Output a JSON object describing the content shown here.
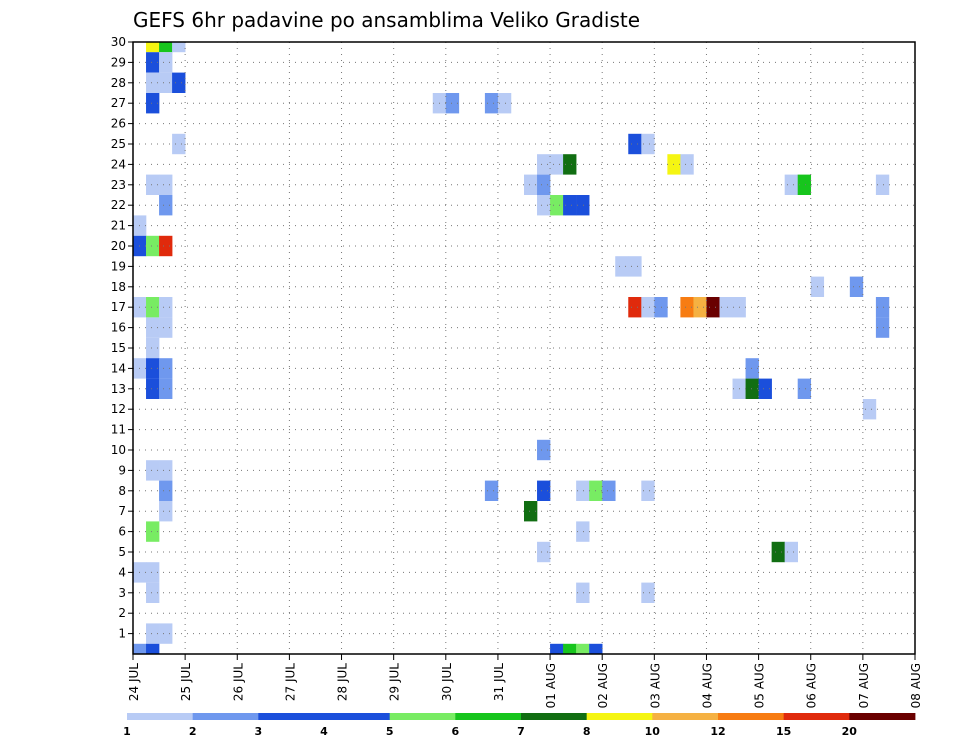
{
  "chart_data": {
    "type": "heatmap",
    "title": "GEFS 6hr padavine po ansamblima Veliko Gradiste",
    "xlabel": "",
    "ylabel": "",
    "x_tick_labels": [
      "24 JUL",
      "25 JUL",
      "26 JUL",
      "27 JUL",
      "28 JUL",
      "29 JUL",
      "30 JUL",
      "31 JUL",
      "01 AUG",
      "02 AUG",
      "03 AUG",
      "04 AUG",
      "05 AUG",
      "06 AUG",
      "07 AUG",
      "08 AUG"
    ],
    "y_tick_labels": [
      "1",
      "2",
      "3",
      "4",
      "5",
      "6",
      "7",
      "8",
      "9",
      "10",
      "11",
      "12",
      "13",
      "14",
      "15",
      "16",
      "17",
      "18",
      "19",
      "20",
      "21",
      "22",
      "23",
      "24",
      "25",
      "26",
      "27",
      "28",
      "29",
      "30"
    ],
    "x_range_steps": [
      0,
      60
    ],
    "y_range": [
      0,
      30
    ],
    "grid": true,
    "levels": [
      "1",
      "2",
      "3",
      "4",
      "5",
      "6",
      "7",
      "8",
      "10",
      "12",
      "15",
      "20"
    ],
    "colors": [
      "#b8cbf5",
      "#6f98ee",
      "#1b4fdb",
      "#1b4fdb",
      "#78ec63",
      "#17c51d",
      "#116e12",
      "#f5f512",
      "#f5b142",
      "#f77c12",
      "#e02a0c",
      "#6a0000"
    ],
    "cell_value_note": "each cell: [step index from 24 JUL 00z in 6-hour steps, ensemble member, color class index]",
    "cells": [
      [
        1,
        30,
        7
      ],
      [
        2,
        30,
        5
      ],
      [
        3,
        30,
        0
      ],
      [
        1,
        29,
        2
      ],
      [
        2,
        29,
        0
      ],
      [
        1,
        28,
        0
      ],
      [
        2,
        28,
        0
      ],
      [
        3,
        28,
        2
      ],
      [
        1,
        27,
        2
      ],
      [
        23,
        27,
        0
      ],
      [
        24,
        27,
        1
      ],
      [
        27,
        27,
        1
      ],
      [
        28,
        27,
        0
      ],
      [
        3,
        25,
        0
      ],
      [
        38,
        25,
        2
      ],
      [
        39,
        25,
        0
      ],
      [
        31,
        24,
        0
      ],
      [
        32,
        24,
        0
      ],
      [
        33,
        24,
        6
      ],
      [
        41,
        24,
        7
      ],
      [
        42,
        24,
        0
      ],
      [
        1,
        23,
        0
      ],
      [
        2,
        23,
        0
      ],
      [
        30,
        23,
        0
      ],
      [
        31,
        23,
        1
      ],
      [
        50,
        23,
        0
      ],
      [
        51,
        23,
        5
      ],
      [
        57,
        23,
        0
      ],
      [
        2,
        22,
        1
      ],
      [
        31,
        22,
        0
      ],
      [
        32,
        22,
        4
      ],
      [
        33,
        22,
        2
      ],
      [
        34,
        22,
        2
      ],
      [
        0,
        21,
        0
      ],
      [
        0,
        20,
        2
      ],
      [
        1,
        20,
        4
      ],
      [
        2,
        20,
        10
      ],
      [
        37,
        19,
        0
      ],
      [
        38,
        19,
        0
      ],
      [
        52,
        18,
        0
      ],
      [
        55,
        18,
        1
      ],
      [
        0,
        17,
        0
      ],
      [
        1,
        17,
        4
      ],
      [
        2,
        17,
        0
      ],
      [
        38,
        17,
        10
      ],
      [
        39,
        17,
        0
      ],
      [
        40,
        17,
        1
      ],
      [
        42,
        17,
        9
      ],
      [
        43,
        17,
        8
      ],
      [
        44,
        17,
        11
      ],
      [
        45,
        17,
        0
      ],
      [
        46,
        17,
        0
      ],
      [
        57,
        17,
        1
      ],
      [
        1,
        16,
        0
      ],
      [
        2,
        16,
        0
      ],
      [
        57,
        16,
        1
      ],
      [
        1,
        15,
        0
      ],
      [
        0,
        14,
        0
      ],
      [
        1,
        14,
        2
      ],
      [
        2,
        14,
        1
      ],
      [
        47,
        14,
        1
      ],
      [
        1,
        13,
        2
      ],
      [
        2,
        13,
        1
      ],
      [
        46,
        13,
        0
      ],
      [
        47,
        13,
        6
      ],
      [
        48,
        13,
        2
      ],
      [
        51,
        13,
        1
      ],
      [
        56,
        12,
        0
      ],
      [
        31,
        10,
        1
      ],
      [
        1,
        9,
        0
      ],
      [
        2,
        9,
        0
      ],
      [
        2,
        8,
        1
      ],
      [
        27,
        8,
        1
      ],
      [
        31,
        8,
        2
      ],
      [
        34,
        8,
        0
      ],
      [
        35,
        8,
        4
      ],
      [
        36,
        8,
        1
      ],
      [
        39,
        8,
        0
      ],
      [
        2,
        7,
        0
      ],
      [
        30,
        7,
        6
      ],
      [
        1,
        6,
        4
      ],
      [
        34,
        6,
        0
      ],
      [
        31,
        5,
        0
      ],
      [
        49,
        5,
        6
      ],
      [
        50,
        5,
        0
      ],
      [
        0,
        4,
        0
      ],
      [
        1,
        4,
        0
      ],
      [
        1,
        3,
        0
      ],
      [
        34,
        3,
        0
      ],
      [
        39,
        3,
        0
      ],
      [
        1,
        1,
        0
      ],
      [
        2,
        1,
        0
      ],
      [
        0,
        0,
        1
      ],
      [
        1,
        0,
        2
      ],
      [
        32,
        0,
        2
      ],
      [
        33,
        0,
        5
      ],
      [
        34,
        0,
        4
      ],
      [
        35,
        0,
        2
      ]
    ]
  }
}
